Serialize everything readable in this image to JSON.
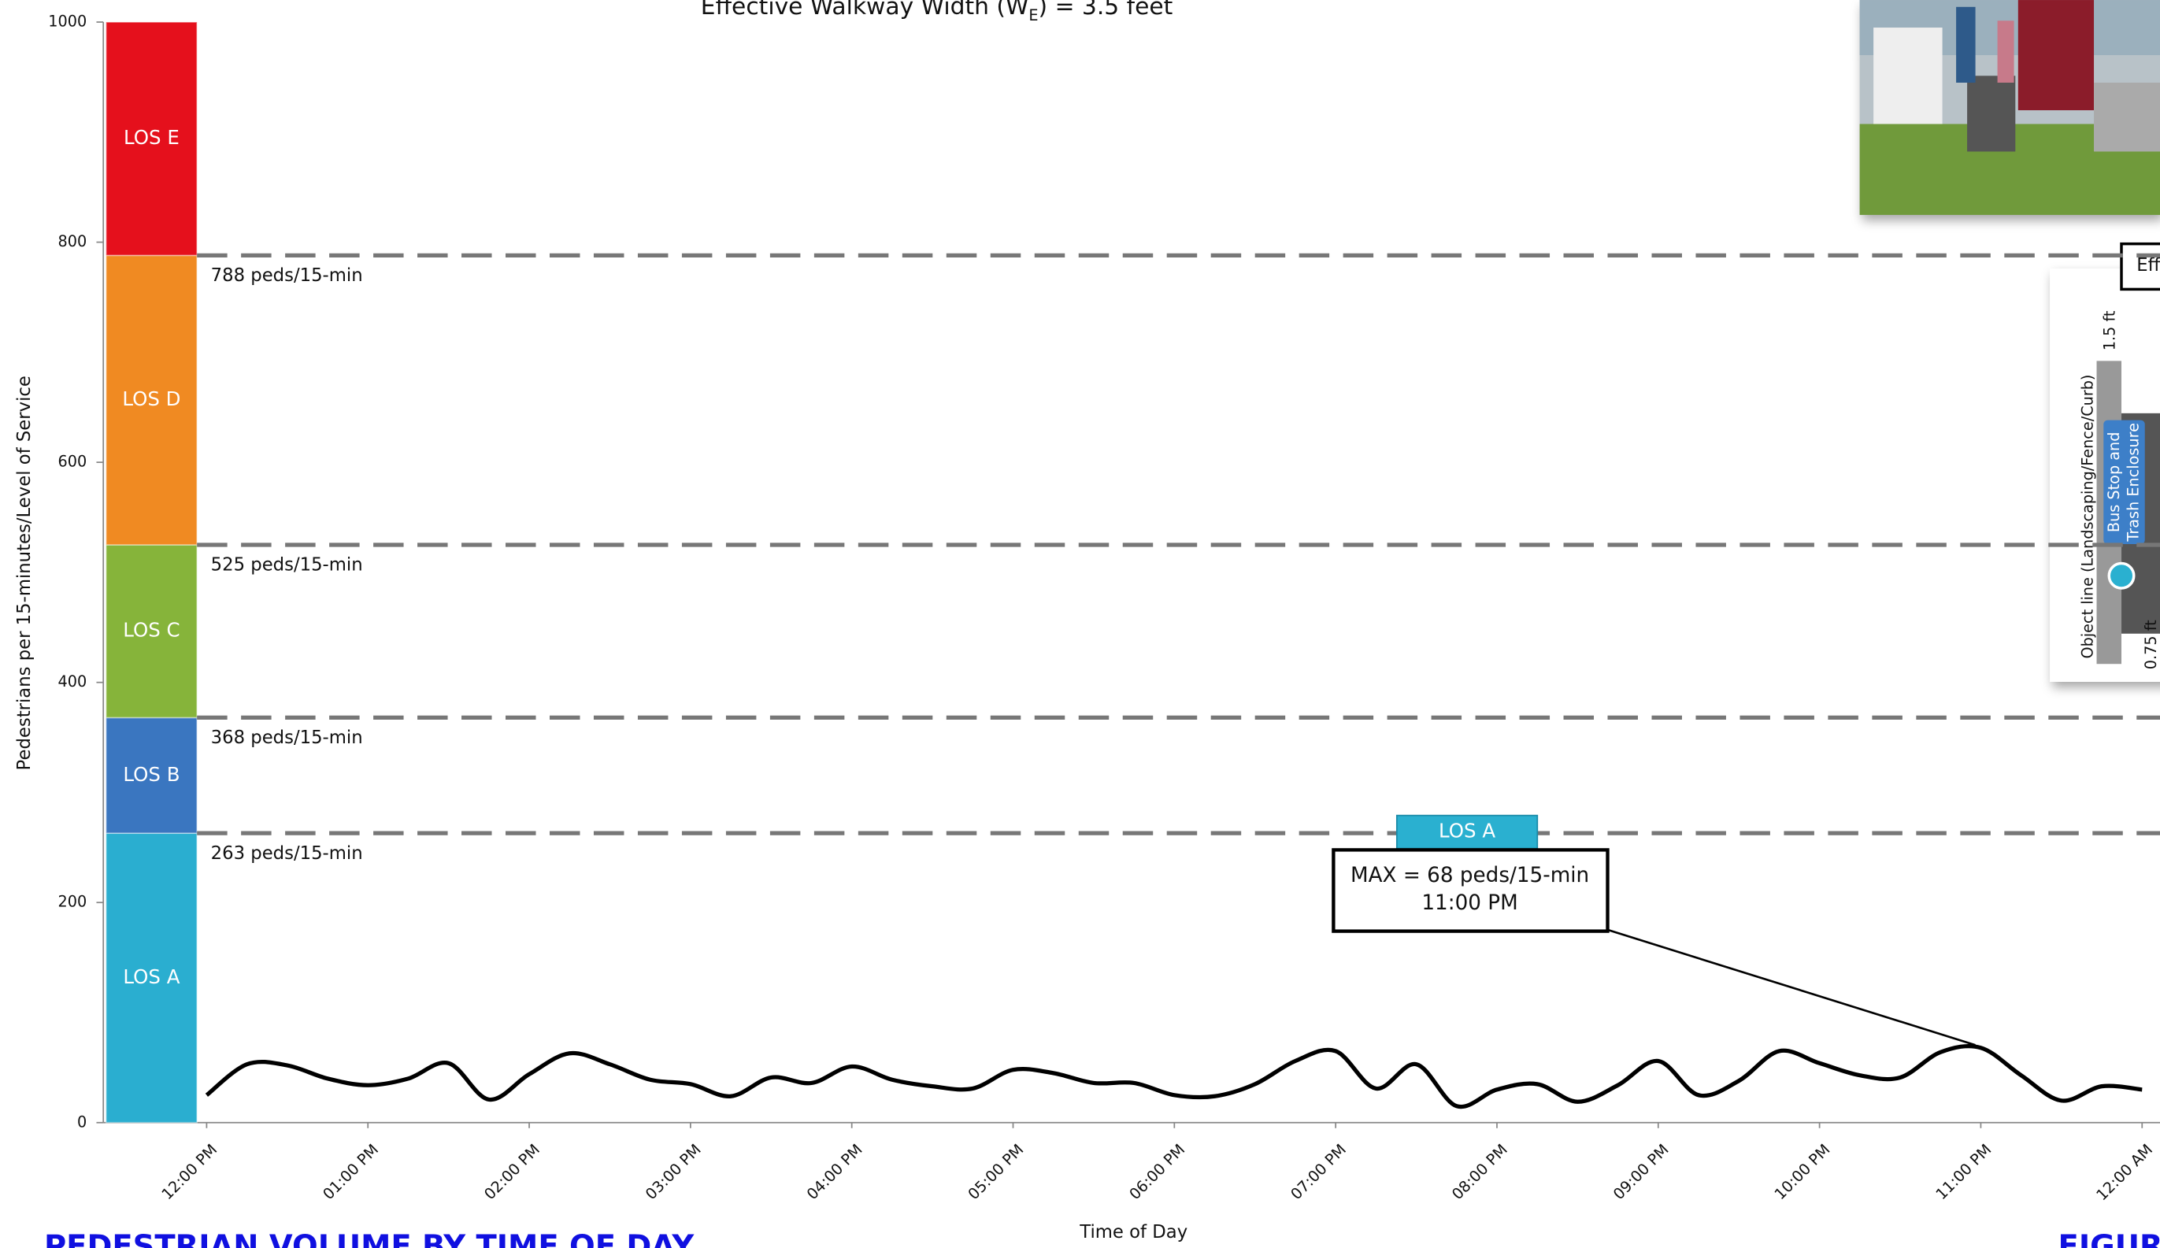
{
  "chart_data": {
    "type": "line",
    "title_parts": [
      "Effective Walkway Width (W",
      "E",
      ") = 3.5 feet"
    ],
    "y_label": "Pedestrians per 15-minutes/Level of Service",
    "x_label": "Time of Day",
    "footer_title": "PEDESTRIAN VOLUME BY TIME OF DAY",
    "footer_right": "FIGUR",
    "categories": [
      "12:00 PM",
      null,
      null,
      null,
      "01:00 PM",
      null,
      null,
      null,
      "02:00 PM",
      null,
      null,
      null,
      "03:00 PM",
      null,
      null,
      null,
      "04:00 PM",
      null,
      null,
      null,
      "05:00 PM",
      null,
      null,
      null,
      "06:00 PM",
      null,
      null,
      null,
      "07:00 PM",
      null,
      null,
      null,
      "08:00 PM",
      null,
      null,
      null,
      "09:00 PM",
      null,
      null,
      null,
      "10:00 PM",
      null,
      null,
      null,
      "11:00 PM",
      null,
      null,
      null,
      "12:00 AM"
    ],
    "series": [
      {
        "name": "Pedestrian volume",
        "color": "#000000",
        "values": [
          25,
          53,
          52,
          40,
          34,
          40,
          54,
          21,
          44,
          63,
          53,
          39,
          35,
          24,
          41,
          36,
          51,
          39,
          33,
          31,
          48,
          45,
          36,
          36,
          25,
          24,
          35,
          56,
          65,
          31,
          53,
          15,
          30,
          35,
          19,
          34,
          56,
          25,
          38,
          65,
          54,
          43,
          41,
          64,
          68,
          43,
          20,
          33,
          30
        ]
      }
    ],
    "ylim": [
      0,
      1000
    ],
    "yticks": [
      0,
      200,
      400,
      600,
      800,
      1000
    ],
    "thresholds": [
      {
        "value": 263,
        "label": "263 peds/15-min"
      },
      {
        "value": 368,
        "label": "368 peds/15-min"
      },
      {
        "value": 525,
        "label": "525 peds/15-min"
      },
      {
        "value": 788,
        "label": "788 peds/15-min"
      }
    ],
    "los_bands": [
      {
        "label": "LOS A",
        "color": "#2aaed0"
      },
      {
        "label": "LOS B",
        "color": "#3a76c0"
      },
      {
        "label": "LOS C",
        "color": "#86b43a"
      },
      {
        "label": "LOS D",
        "color": "#f08a22"
      },
      {
        "label": "LOS E",
        "color": "#e5101c"
      }
    ],
    "current_los": "LOS A",
    "max_annotation": {
      "line1": "MAX = 68 peds/15-min",
      "line2": "11:00 PM",
      "index": 44
    },
    "diagram": {
      "box_label": "Eff",
      "top_dim": "1.5 ft",
      "object_line": "Object line (Landscaping/Fence/Curb)",
      "obstruction_1": "Bus Stop and",
      "obstruction_2": "Trash Enclosure",
      "bottom_dim": "0.75 ft"
    }
  }
}
